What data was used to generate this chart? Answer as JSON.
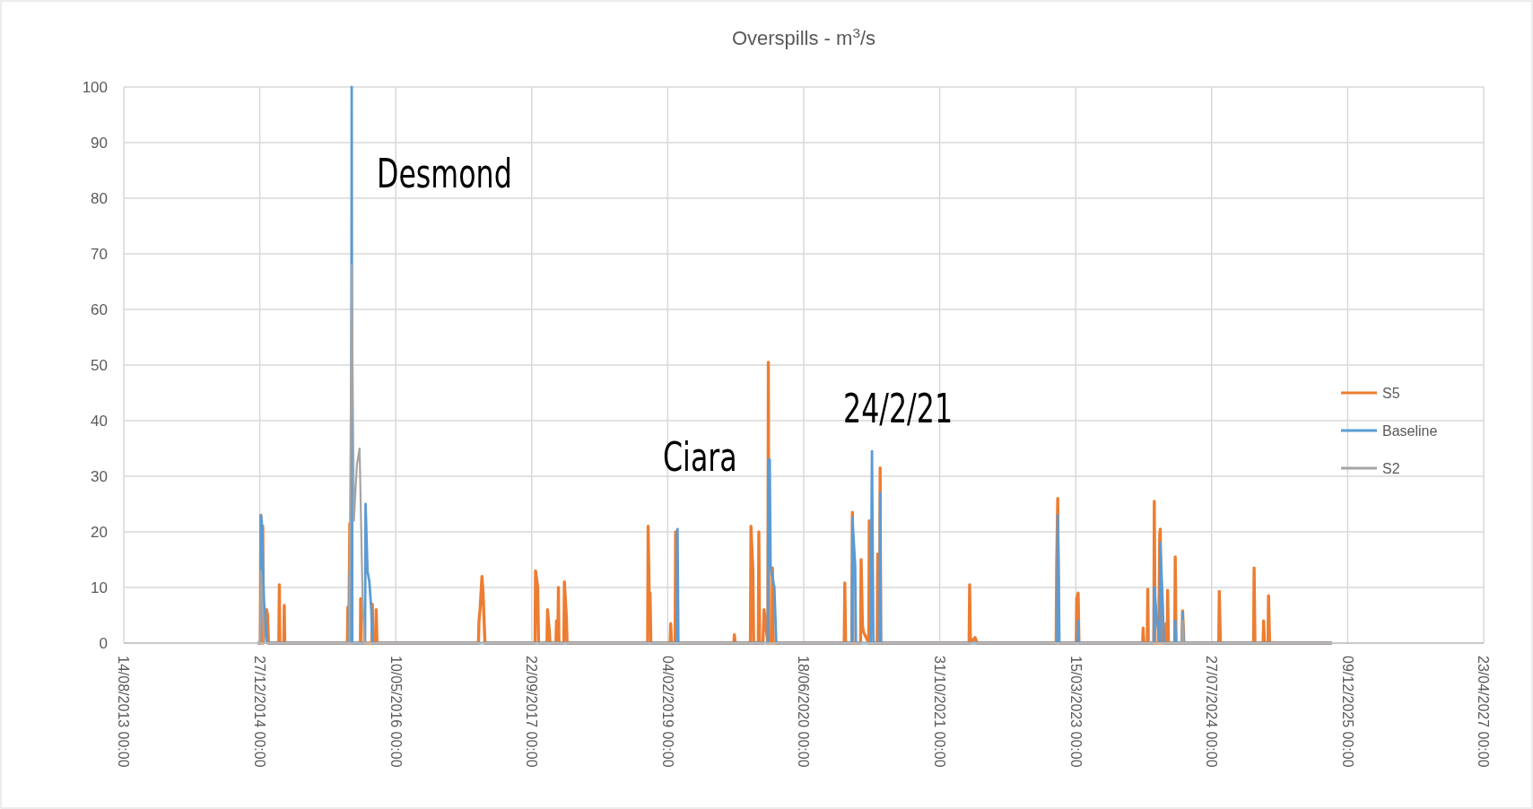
{
  "chart_data": {
    "type": "line",
    "title": "Overspills - m$^{3}$/s",
    "xlim": [
      "2013-08-14",
      "2027-04-23"
    ],
    "xticks": [
      {
        "value": "2013-08-14",
        "label": "14/08/2013 00:00"
      },
      {
        "value": "2014-12-27",
        "label": "27/12/2014 00:00"
      },
      {
        "value": "2016-05-10",
        "label": "10/05/2016 00:00"
      },
      {
        "value": "2017-09-22",
        "label": "22/09/2017 00:00"
      },
      {
        "value": "2019-02-04",
        "label": "04/02/2019 00:00"
      },
      {
        "value": "2020-06-18",
        "label": "18/06/2020 00:00"
      },
      {
        "value": "2021-10-31",
        "label": "31/10/2021 00:00"
      },
      {
        "value": "2023-03-15",
        "label": "15/03/2023 00:00"
      },
      {
        "value": "2024-07-27",
        "label": "27/07/2024 00:00"
      },
      {
        "value": "2025-12-09",
        "label": "09/12/2025 00:00"
      },
      {
        "value": "2027-04-23",
        "label": "23/04/2027 00:00"
      }
    ],
    "ylim": [
      0,
      100
    ],
    "yticks": [
      0,
      10,
      20,
      30,
      40,
      50,
      60,
      70,
      80,
      90,
      100
    ],
    "grid": true,
    "legend": "right",
    "marker": "none",
    "line_style": "solid",
    "annotations": [
      "Desmond",
      "Ciara",
      "24/2/21"
    ],
    "series": [
      {
        "name": "S5",
        "color": "#ed7d31",
        "x": [
          "2014-12-20",
          "2014-12-29",
          "2014-12-31",
          "2015-01-02",
          "2015-01-07",
          "2015-01-09",
          "2015-01-21",
          "2015-01-25",
          "2015-01-28",
          "2015-03-07",
          "2015-03-09",
          "2015-03-11",
          "2015-03-25",
          "2015-03-27",
          "2015-03-29",
          "2015-11-14",
          "2015-11-16",
          "2015-11-19",
          "2015-11-23",
          "2015-11-26",
          "2016-01-01",
          "2016-01-02",
          "2016-01-04",
          "2016-02-12",
          "2016-02-14",
          "2016-02-16",
          "2016-02-26",
          "2016-02-28",
          "2016-03-02",
          "2017-03-10",
          "2017-03-12",
          "2017-03-16",
          "2017-03-23",
          "2017-03-27",
          "2017-04-03",
          "2017-10-04",
          "2017-10-06",
          "2017-10-14",
          "2017-10-17",
          "2017-11-17",
          "2017-11-19",
          "2017-11-26",
          "2017-11-28",
          "2017-12-20",
          "2017-12-22",
          "2017-12-24",
          "2017-12-27",
          "2017-12-29",
          "2017-12-31",
          "2018-01-18",
          "2018-01-20",
          "2018-01-27",
          "2018-01-30",
          "2018-11-22",
          "2018-11-24",
          "2018-11-28",
          "2018-12-01",
          "2018-12-04",
          "2019-02-13",
          "2019-02-15",
          "2019-02-18",
          "2019-03-03",
          "2019-03-05",
          "2019-03-07",
          "2019-10-05",
          "2019-10-07",
          "2019-10-10",
          "2019-12-05",
          "2019-12-07",
          "2019-12-14",
          "2019-12-17",
          "2020-01-03",
          "2020-01-05",
          "2020-01-08",
          "2020-01-20",
          "2020-01-24",
          "2020-02-07",
          "2020-02-09",
          "2020-02-11",
          "2020-02-22",
          "2020-02-24",
          "2020-02-27",
          "2020-11-14",
          "2020-11-16",
          "2020-11-19",
          "2020-12-12",
          "2020-12-14",
          "2020-12-16",
          "2021-01-13",
          "2021-01-15",
          "2021-01-20",
          "2021-01-24",
          "2021-02-12",
          "2021-02-14",
          "2021-02-17",
          "2021-03-15",
          "2021-03-17",
          "2021-03-20",
          "2021-03-24",
          "2021-03-26",
          "2021-03-28",
          "2022-02-16",
          "2022-02-18",
          "2022-02-21",
          "2022-03-10",
          "2022-03-17",
          "2023-01-02",
          "2023-01-04",
          "2023-01-08",
          "2023-01-11",
          "2023-03-17",
          "2023-03-19",
          "2023-03-24",
          "2023-03-27",
          "2023-11-16",
          "2023-11-18",
          "2023-11-21",
          "2023-12-03",
          "2023-12-05",
          "2023-12-07",
          "2023-12-27",
          "2023-12-29",
          "2024-01-01",
          "2024-01-14",
          "2024-01-18",
          "2024-01-20",
          "2024-01-23",
          "2024-02-08",
          "2024-02-10",
          "2024-02-12",
          "2024-02-14",
          "2024-02-16",
          "2024-02-19",
          "2024-03-13",
          "2024-03-15",
          "2024-03-18",
          "2024-04-09",
          "2024-04-11",
          "2024-04-16",
          "2024-08-22",
          "2024-08-24",
          "2024-08-28",
          "2024-12-28",
          "2024-12-30",
          "2025-01-02",
          "2025-02-01",
          "2025-02-03",
          "2025-02-06",
          "2025-02-19",
          "2025-02-21",
          "2025-02-25",
          "2025-10-12"
        ],
        "values": [
          0,
          0,
          23,
          0,
          21,
          0,
          6,
          5,
          0,
          0,
          10.5,
          0,
          0,
          6.8,
          0,
          0,
          6.5,
          0,
          21.5,
          0,
          0,
          8,
          0,
          0,
          7,
          0,
          0,
          6,
          0,
          0,
          4,
          6,
          12,
          9,
          0,
          0,
          13,
          10,
          0,
          0,
          6,
          2,
          0,
          0,
          4,
          0,
          0,
          10,
          0,
          0,
          11,
          5,
          0,
          0,
          21,
          8,
          9,
          0,
          0,
          3.5,
          0,
          0,
          20,
          0,
          0,
          1.5,
          0,
          0,
          21,
          13,
          0,
          0,
          20,
          0,
          0,
          6,
          0,
          50.5,
          0,
          0,
          13.5,
          0,
          0,
          10.8,
          0,
          0,
          23.5,
          0,
          0,
          15,
          3,
          2,
          0,
          22,
          0,
          0,
          16,
          0,
          0,
          31.5,
          0,
          0,
          10.5,
          0,
          1,
          0,
          0,
          14,
          26,
          0,
          0,
          8,
          9,
          0,
          0,
          2.7,
          0,
          0,
          9.7,
          0,
          0,
          25.5,
          0,
          0,
          19.5,
          20.5,
          0,
          0,
          3.5,
          0,
          0,
          9.5,
          0,
          0,
          15.5,
          0,
          0,
          5.8,
          0,
          0,
          9.3,
          0,
          0,
          13.5,
          0,
          0,
          4,
          0,
          0,
          8.5,
          0,
          0
        ]
      },
      {
        "name": "Baseline",
        "color": "#5b9bd5",
        "x": [
          "2014-12-20",
          "2014-12-29",
          "2014-12-31",
          "2015-01-05",
          "2015-01-09",
          "2015-01-12",
          "2015-01-16",
          "2015-01-23",
          "2015-11-21",
          "2015-11-23",
          "2015-11-28",
          "2015-11-30",
          "2015-12-02",
          "2016-01-18",
          "2016-01-20",
          "2016-01-27",
          "2016-02-03",
          "2016-02-10",
          "2016-02-14",
          "2019-03-10",
          "2019-03-12",
          "2019-03-15",
          "2020-02-07",
          "2020-02-09",
          "2020-02-14",
          "2020-02-17",
          "2020-02-20",
          "2020-03-02",
          "2020-03-09",
          "2020-12-12",
          "2020-12-14",
          "2020-12-24",
          "2020-12-27",
          "2021-02-19",
          "2021-02-24",
          "2021-03-01",
          "2021-03-24",
          "2021-03-26",
          "2021-03-29",
          "2023-01-06",
          "2023-01-08",
          "2023-01-11",
          "2023-01-14",
          "2023-03-22",
          "2023-03-24",
          "2023-03-27",
          "2023-12-27",
          "2023-12-29",
          "2024-01-06",
          "2024-01-18",
          "2024-01-20",
          "2024-01-29",
          "2024-02-02",
          "2024-03-13",
          "2024-03-15",
          "2024-03-18",
          "2024-04-09",
          "2024-04-11",
          "2024-04-15",
          "2025-10-12"
        ],
        "values": [
          0,
          0,
          23,
          21,
          11.5,
          7,
          5,
          0,
          0,
          13,
          0,
          100,
          0,
          0,
          25,
          13,
          11,
          6,
          0,
          0,
          20.5,
          0,
          0,
          33,
          33,
          14,
          13,
          10,
          0,
          0,
          22.5,
          14,
          0,
          0,
          34.5,
          0,
          0,
          27,
          0,
          0,
          23,
          14.5,
          0,
          0,
          4,
          0,
          0,
          10,
          5,
          0,
          18,
          7,
          0,
          0,
          4,
          0,
          0,
          5.5,
          0,
          0
        ]
      },
      {
        "name": "S2",
        "color": "#a5a5a5",
        "x": [
          "2014-12-20",
          "2014-12-29",
          "2014-12-31",
          "2015-01-12",
          "2015-11-21",
          "2015-11-30",
          "2015-12-08",
          "2015-12-19",
          "2015-12-29",
          "2016-01-09",
          "2016-01-16",
          "2024-04-09",
          "2024-04-11",
          "2024-04-15",
          "2025-10-12"
        ],
        "values": [
          0,
          0,
          13,
          0,
          0,
          68,
          22,
          32,
          35,
          8,
          0,
          0,
          4,
          0,
          0
        ]
      }
    ]
  }
}
